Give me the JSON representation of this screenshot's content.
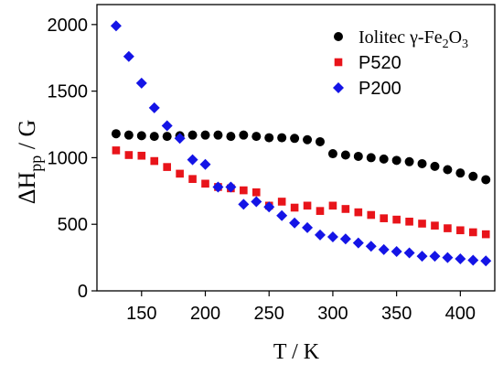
{
  "chart_data": {
    "type": "scatter",
    "title": "",
    "xlabel": "T / K",
    "ylabel": {
      "main": "ΔH",
      "sub": "pp",
      "tail": " / G"
    },
    "xlim": [
      115,
      427
    ],
    "ylim": [
      0,
      2150
    ],
    "xticks": [
      150,
      200,
      250,
      300,
      350,
      400
    ],
    "yticks": [
      0,
      500,
      1000,
      1500,
      2000
    ],
    "grid": false,
    "legend_position": "top-right",
    "series": [
      {
        "name": "Iolitec γ-Fe2O3",
        "label_parts": [
          [
            "Iolitec γ-Fe",
            false
          ],
          [
            "2",
            true
          ],
          [
            "O",
            false
          ],
          [
            "3",
            true
          ]
        ],
        "color": "#000000",
        "marker": "circle",
        "x": [
          130,
          140,
          150,
          160,
          170,
          180,
          190,
          200,
          210,
          220,
          230,
          240,
          250,
          260,
          270,
          280,
          290,
          300,
          310,
          320,
          330,
          340,
          350,
          360,
          370,
          380,
          390,
          400,
          410,
          420
        ],
        "y": [
          1180,
          1170,
          1165,
          1160,
          1160,
          1165,
          1170,
          1170,
          1170,
          1160,
          1170,
          1160,
          1150,
          1150,
          1145,
          1135,
          1120,
          1030,
          1020,
          1010,
          1000,
          990,
          980,
          970,
          955,
          935,
          910,
          885,
          860,
          835
        ]
      },
      {
        "name": "P520",
        "label_parts": [
          [
            "P520",
            false
          ]
        ],
        "color": "#e8141a",
        "marker": "square",
        "x": [
          130,
          140,
          150,
          160,
          170,
          180,
          190,
          200,
          210,
          220,
          230,
          240,
          250,
          260,
          270,
          280,
          290,
          300,
          310,
          320,
          330,
          340,
          350,
          360,
          370,
          380,
          390,
          400,
          410,
          420
        ],
        "y": [
          1055,
          1020,
          1015,
          975,
          930,
          880,
          840,
          805,
          780,
          770,
          755,
          740,
          640,
          670,
          625,
          640,
          600,
          640,
          615,
          590,
          570,
          545,
          535,
          520,
          505,
          490,
          470,
          455,
          440,
          425
        ]
      },
      {
        "name": "P200",
        "label_parts": [
          [
            "P200",
            false
          ]
        ],
        "color": "#1414e6",
        "marker": "diamond",
        "x": [
          130,
          140,
          150,
          160,
          170,
          180,
          190,
          200,
          210,
          220,
          230,
          240,
          250,
          260,
          270,
          280,
          290,
          300,
          310,
          320,
          330,
          340,
          350,
          360,
          370,
          380,
          390,
          400,
          410,
          420
        ],
        "y": [
          1990,
          1760,
          1560,
          1375,
          1240,
          1145,
          985,
          950,
          780,
          780,
          650,
          670,
          630,
          565,
          510,
          475,
          420,
          405,
          390,
          360,
          335,
          310,
          295,
          285,
          260,
          260,
          250,
          240,
          230,
          225
        ]
      }
    ]
  }
}
